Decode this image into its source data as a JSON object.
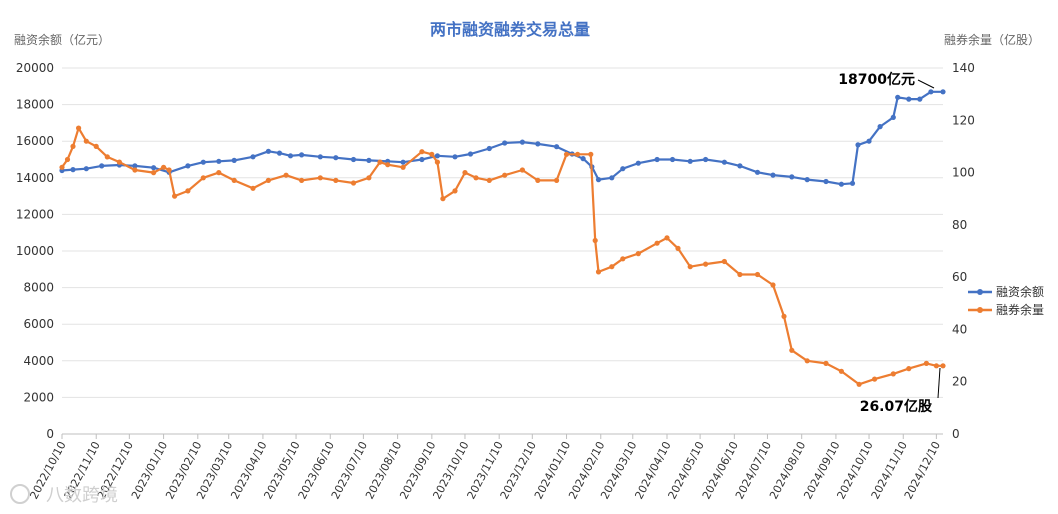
{
  "chart_data": {
    "type": "line",
    "title": "两市融资融券交易总量",
    "y_left_label": "融资余额（亿元）",
    "y_right_label": "融券余量（亿股）",
    "y_left_ticks": [
      "0",
      "2000",
      "4000",
      "6000",
      "8000",
      "10000",
      "12000",
      "14000",
      "16000",
      "18000",
      "20000"
    ],
    "y_right_ticks": [
      "0",
      "20",
      "40",
      "60",
      "80",
      "100",
      "120",
      "140"
    ],
    "ylim_left": [
      0,
      20000
    ],
    "ylim_right": [
      0,
      140
    ],
    "x_ticks": [
      "2022/10/10",
      "2022/11/10",
      "2022/12/10",
      "2023/01/10",
      "2023/02/10",
      "2023/03/10",
      "2023/04/10",
      "2023/05/10",
      "2023/06/10",
      "2023/07/10",
      "2023/08/10",
      "2023/09/10",
      "2023/10/10",
      "2023/11/10",
      "2023/12/10",
      "2024/01/10",
      "2024/02/10",
      "2024/03/10",
      "2024/04/10",
      "2024/05/10",
      "2024/06/10",
      "2024/07/10",
      "2024/08/10",
      "2024/09/10",
      "2024/10/10",
      "2024/11/10",
      "2024/12/10"
    ],
    "xlim": [
      "2022/10/10",
      "2024/12/16"
    ],
    "grid": "horizontal",
    "legend_position": "right",
    "series": [
      {
        "name": "融资余额",
        "axis": "left",
        "color": "#4472C4",
        "points": [
          [
            "2022/10/10",
            14400
          ],
          [
            "2022/10/20",
            14450
          ],
          [
            "2022/11/01",
            14500
          ],
          [
            "2022/11/15",
            14650
          ],
          [
            "2022/12/01",
            14700
          ],
          [
            "2022/12/15",
            14650
          ],
          [
            "2023/01/01",
            14550
          ],
          [
            "2023/01/15",
            14300
          ],
          [
            "2023/02/01",
            14650
          ],
          [
            "2023/02/15",
            14850
          ],
          [
            "2023/03/01",
            14900
          ],
          [
            "2023/03/15",
            14950
          ],
          [
            "2023/04/01",
            15150
          ],
          [
            "2023/04/15",
            15450
          ],
          [
            "2023/04/25",
            15350
          ],
          [
            "2023/05/05",
            15200
          ],
          [
            "2023/05/15",
            15250
          ],
          [
            "2023/06/01",
            15150
          ],
          [
            "2023/06/15",
            15100
          ],
          [
            "2023/07/01",
            15000
          ],
          [
            "2023/07/15",
            14950
          ],
          [
            "2023/08/01",
            14900
          ],
          [
            "2023/08/15",
            14850
          ],
          [
            "2023/09/01",
            15000
          ],
          [
            "2023/09/15",
            15200
          ],
          [
            "2023/10/01",
            15150
          ],
          [
            "2023/10/15",
            15300
          ],
          [
            "2023/11/01",
            15600
          ],
          [
            "2023/11/15",
            15900
          ],
          [
            "2023/12/01",
            15950
          ],
          [
            "2023/12/15",
            15850
          ],
          [
            "2024/01/01",
            15700
          ],
          [
            "2024/01/15",
            15300
          ],
          [
            "2024/01/25",
            15050
          ],
          [
            "2024/02/02",
            14600
          ],
          [
            "2024/02/08",
            13900
          ],
          [
            "2024/02/20",
            14000
          ],
          [
            "2024/03/01",
            14500
          ],
          [
            "2024/03/15",
            14800
          ],
          [
            "2024/04/01",
            15000
          ],
          [
            "2024/04/15",
            15000
          ],
          [
            "2024/05/01",
            14900
          ],
          [
            "2024/05/15",
            15000
          ],
          [
            "2024/06/01",
            14850
          ],
          [
            "2024/06/15",
            14650
          ],
          [
            "2024/07/01",
            14300
          ],
          [
            "2024/07/15",
            14150
          ],
          [
            "2024/08/01",
            14050
          ],
          [
            "2024/08/15",
            13900
          ],
          [
            "2024/09/01",
            13800
          ],
          [
            "2024/09/15",
            13650
          ],
          [
            "2024/09/25",
            13700
          ],
          [
            "2024/09/30",
            15800
          ],
          [
            "2024/10/10",
            16000
          ],
          [
            "2024/10/20",
            16800
          ],
          [
            "2024/11/01",
            17300
          ],
          [
            "2024/11/05",
            18400
          ],
          [
            "2024/11/15",
            18300
          ],
          [
            "2024/11/25",
            18300
          ],
          [
            "2024/12/05",
            18700
          ],
          [
            "2024/12/16",
            18700
          ]
        ]
      },
      {
        "name": "融券余量",
        "axis": "right",
        "color": "#ED7D31",
        "points": [
          [
            "2022/10/10",
            102
          ],
          [
            "2022/10/15",
            105
          ],
          [
            "2022/10/20",
            110
          ],
          [
            "2022/10/25",
            117
          ],
          [
            "2022/11/01",
            112
          ],
          [
            "2022/11/10",
            110
          ],
          [
            "2022/11/20",
            106
          ],
          [
            "2022/12/01",
            104
          ],
          [
            "2022/12/15",
            101
          ],
          [
            "2023/01/01",
            100
          ],
          [
            "2023/01/10",
            102
          ],
          [
            "2023/01/15",
            101
          ],
          [
            "2023/01/20",
            91
          ],
          [
            "2023/02/01",
            93
          ],
          [
            "2023/02/15",
            98
          ],
          [
            "2023/03/01",
            100
          ],
          [
            "2023/03/15",
            97
          ],
          [
            "2023/04/01",
            94
          ],
          [
            "2023/04/15",
            97
          ],
          [
            "2023/05/01",
            99
          ],
          [
            "2023/05/15",
            97
          ],
          [
            "2023/06/01",
            98
          ],
          [
            "2023/06/15",
            97
          ],
          [
            "2023/07/01",
            96
          ],
          [
            "2023/07/15",
            98
          ],
          [
            "2023/07/25",
            104
          ],
          [
            "2023/08/01",
            103
          ],
          [
            "2023/08/15",
            102
          ],
          [
            "2023/09/01",
            108
          ],
          [
            "2023/09/10",
            107
          ],
          [
            "2023/09/15",
            104
          ],
          [
            "2023/09/20",
            90
          ],
          [
            "2023/10/01",
            93
          ],
          [
            "2023/10/10",
            100
          ],
          [
            "2023/10/20",
            98
          ],
          [
            "2023/11/01",
            97
          ],
          [
            "2023/11/15",
            99
          ],
          [
            "2023/12/01",
            101
          ],
          [
            "2023/12/15",
            97
          ],
          [
            "2024/01/01",
            97
          ],
          [
            "2024/01/10",
            107
          ],
          [
            "2024/01/20",
            107
          ],
          [
            "2024/02/01",
            107
          ],
          [
            "2024/02/05",
            74
          ],
          [
            "2024/02/08",
            62
          ],
          [
            "2024/02/20",
            64
          ],
          [
            "2024/03/01",
            67
          ],
          [
            "2024/03/15",
            69
          ],
          [
            "2024/04/01",
            73
          ],
          [
            "2024/04/10",
            75
          ],
          [
            "2024/04/20",
            71
          ],
          [
            "2024/05/01",
            64
          ],
          [
            "2024/05/15",
            65
          ],
          [
            "2024/06/01",
            66
          ],
          [
            "2024/06/15",
            61
          ],
          [
            "2024/07/01",
            61
          ],
          [
            "2024/07/15",
            57
          ],
          [
            "2024/07/25",
            45
          ],
          [
            "2024/08/01",
            32
          ],
          [
            "2024/08/15",
            28
          ],
          [
            "2024/09/01",
            27
          ],
          [
            "2024/09/15",
            24
          ],
          [
            "2024/10/01",
            19
          ],
          [
            "2024/10/15",
            21
          ],
          [
            "2024/11/01",
            23
          ],
          [
            "2024/11/15",
            25
          ],
          [
            "2024/12/01",
            27
          ],
          [
            "2024/12/10",
            26.07
          ],
          [
            "2024/12/16",
            26.07
          ]
        ]
      }
    ],
    "annotations": [
      {
        "text": "18700亿元",
        "series": 0
      },
      {
        "text": "26.07亿股",
        "series": 1
      }
    ]
  },
  "watermark": "八数跨境"
}
